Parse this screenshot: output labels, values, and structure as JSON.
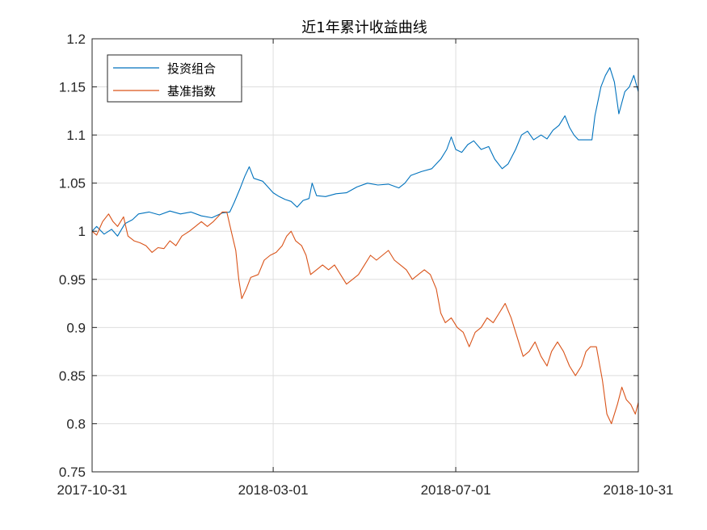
{
  "chart_data": {
    "type": "line",
    "title": "近1年累计收益曲线",
    "xlabel": "",
    "ylabel": "",
    "x_ticks": [
      "2017-10-31",
      "2018-03-01",
      "2018-07-01",
      "2018-10-31"
    ],
    "xlim": [
      "2017-10-31",
      "2018-10-31"
    ],
    "ylim": [
      0.75,
      1.2
    ],
    "y_ticks": [
      0.75,
      0.8,
      0.85,
      0.9,
      0.95,
      1,
      1.05,
      1.1,
      1.15,
      1.2
    ],
    "y_tick_labels": [
      "0.75",
      "0.8",
      "0.85",
      "0.9",
      "0.95",
      "1",
      "1.05",
      "1.1",
      "1.15",
      "1.2"
    ],
    "grid": true,
    "legend_position": "top-left",
    "series": [
      {
        "name": "投资组合",
        "color": "#0072BD",
        "points": [
          [
            "2017-10-31",
            1.0
          ],
          [
            "2017-11-03",
            1.005
          ],
          [
            "2017-11-08",
            0.997
          ],
          [
            "2017-11-13",
            1.002
          ],
          [
            "2017-11-17",
            0.995
          ],
          [
            "2017-11-22",
            1.008
          ],
          [
            "2017-11-27",
            1.012
          ],
          [
            "2017-12-01",
            1.018
          ],
          [
            "2017-12-08",
            1.02
          ],
          [
            "2017-12-15",
            1.017
          ],
          [
            "2017-12-22",
            1.021
          ],
          [
            "2017-12-29",
            1.018
          ],
          [
            "2018-01-05",
            1.02
          ],
          [
            "2018-01-12",
            1.016
          ],
          [
            "2018-01-19",
            1.014
          ],
          [
            "2018-01-26",
            1.019
          ],
          [
            "2018-01-31",
            1.02
          ],
          [
            "2018-02-03",
            1.03
          ],
          [
            "2018-02-07",
            1.045
          ],
          [
            "2018-02-10",
            1.057
          ],
          [
            "2018-02-13",
            1.067
          ],
          [
            "2018-02-16",
            1.055
          ],
          [
            "2018-02-22",
            1.052
          ],
          [
            "2018-03-01",
            1.04
          ],
          [
            "2018-03-05",
            1.036
          ],
          [
            "2018-03-09",
            1.033
          ],
          [
            "2018-03-13",
            1.031
          ],
          [
            "2018-03-17",
            1.025
          ],
          [
            "2018-03-21",
            1.032
          ],
          [
            "2018-03-25",
            1.034
          ],
          [
            "2018-03-27",
            1.05
          ],
          [
            "2018-03-30",
            1.037
          ],
          [
            "2018-04-05",
            1.036
          ],
          [
            "2018-04-12",
            1.039
          ],
          [
            "2018-04-19",
            1.04
          ],
          [
            "2018-04-26",
            1.046
          ],
          [
            "2018-05-03",
            1.05
          ],
          [
            "2018-05-10",
            1.048
          ],
          [
            "2018-05-17",
            1.049
          ],
          [
            "2018-05-24",
            1.045
          ],
          [
            "2018-05-28",
            1.05
          ],
          [
            "2018-06-01",
            1.058
          ],
          [
            "2018-06-08",
            1.062
          ],
          [
            "2018-06-15",
            1.065
          ],
          [
            "2018-06-21",
            1.075
          ],
          [
            "2018-06-25",
            1.085
          ],
          [
            "2018-06-28",
            1.098
          ],
          [
            "2018-07-01",
            1.085
          ],
          [
            "2018-07-05",
            1.082
          ],
          [
            "2018-07-09",
            1.09
          ],
          [
            "2018-07-13",
            1.094
          ],
          [
            "2018-07-18",
            1.085
          ],
          [
            "2018-07-23",
            1.088
          ],
          [
            "2018-07-27",
            1.075
          ],
          [
            "2018-08-01",
            1.065
          ],
          [
            "2018-08-05",
            1.07
          ],
          [
            "2018-08-10",
            1.085
          ],
          [
            "2018-08-14",
            1.1
          ],
          [
            "2018-08-18",
            1.104
          ],
          [
            "2018-08-22",
            1.095
          ],
          [
            "2018-08-27",
            1.1
          ],
          [
            "2018-08-31",
            1.096
          ],
          [
            "2018-09-04",
            1.105
          ],
          [
            "2018-09-08",
            1.11
          ],
          [
            "2018-09-12",
            1.12
          ],
          [
            "2018-09-15",
            1.108
          ],
          [
            "2018-09-18",
            1.1
          ],
          [
            "2018-09-21",
            1.095
          ],
          [
            "2018-09-26",
            1.095
          ],
          [
            "2018-09-30",
            1.095
          ],
          [
            "2018-10-02",
            1.12
          ],
          [
            "2018-10-06",
            1.15
          ],
          [
            "2018-10-09",
            1.162
          ],
          [
            "2018-10-12",
            1.17
          ],
          [
            "2018-10-15",
            1.155
          ],
          [
            "2018-10-18",
            1.122
          ],
          [
            "2018-10-22",
            1.145
          ],
          [
            "2018-10-25",
            1.15
          ],
          [
            "2018-10-28",
            1.162
          ],
          [
            "2018-10-31",
            1.145
          ]
        ]
      },
      {
        "name": "基准指数",
        "color": "#D95319",
        "points": [
          [
            "2017-10-31",
            1.0
          ],
          [
            "2017-11-03",
            0.996
          ],
          [
            "2017-11-07",
            1.01
          ],
          [
            "2017-11-11",
            1.018
          ],
          [
            "2017-11-14",
            1.01
          ],
          [
            "2017-11-17",
            1.005
          ],
          [
            "2017-11-21",
            1.015
          ],
          [
            "2017-11-24",
            0.995
          ],
          [
            "2017-11-28",
            0.99
          ],
          [
            "2017-12-02",
            0.988
          ],
          [
            "2017-12-06",
            0.985
          ],
          [
            "2017-12-10",
            0.978
          ],
          [
            "2017-12-14",
            0.983
          ],
          [
            "2017-12-18",
            0.982
          ],
          [
            "2017-12-22",
            0.99
          ],
          [
            "2017-12-26",
            0.985
          ],
          [
            "2017-12-30",
            0.995
          ],
          [
            "2018-01-04",
            1.0
          ],
          [
            "2018-01-08",
            1.005
          ],
          [
            "2018-01-12",
            1.01
          ],
          [
            "2018-01-16",
            1.005
          ],
          [
            "2018-01-20",
            1.01
          ],
          [
            "2018-01-23",
            1.015
          ],
          [
            "2018-01-26",
            1.02
          ],
          [
            "2018-01-29",
            1.02
          ],
          [
            "2018-02-01",
            1.0
          ],
          [
            "2018-02-04",
            0.98
          ],
          [
            "2018-02-06",
            0.95
          ],
          [
            "2018-02-08",
            0.93
          ],
          [
            "2018-02-11",
            0.94
          ],
          [
            "2018-02-14",
            0.952
          ],
          [
            "2018-02-19",
            0.955
          ],
          [
            "2018-02-23",
            0.97
          ],
          [
            "2018-02-27",
            0.975
          ],
          [
            "2018-03-03",
            0.978
          ],
          [
            "2018-03-07",
            0.985
          ],
          [
            "2018-03-10",
            0.995
          ],
          [
            "2018-03-13",
            1.0
          ],
          [
            "2018-03-16",
            0.99
          ],
          [
            "2018-03-20",
            0.985
          ],
          [
            "2018-03-23",
            0.975
          ],
          [
            "2018-03-26",
            0.955
          ],
          [
            "2018-03-30",
            0.96
          ],
          [
            "2018-04-03",
            0.965
          ],
          [
            "2018-04-07",
            0.96
          ],
          [
            "2018-04-11",
            0.965
          ],
          [
            "2018-04-15",
            0.955
          ],
          [
            "2018-04-19",
            0.945
          ],
          [
            "2018-04-23",
            0.95
          ],
          [
            "2018-04-27",
            0.955
          ],
          [
            "2018-05-01",
            0.965
          ],
          [
            "2018-05-05",
            0.975
          ],
          [
            "2018-05-09",
            0.97
          ],
          [
            "2018-05-13",
            0.975
          ],
          [
            "2018-05-17",
            0.98
          ],
          [
            "2018-05-21",
            0.97
          ],
          [
            "2018-05-25",
            0.965
          ],
          [
            "2018-05-29",
            0.96
          ],
          [
            "2018-06-02",
            0.95
          ],
          [
            "2018-06-06",
            0.955
          ],
          [
            "2018-06-10",
            0.96
          ],
          [
            "2018-06-14",
            0.955
          ],
          [
            "2018-06-18",
            0.94
          ],
          [
            "2018-06-21",
            0.915
          ],
          [
            "2018-06-24",
            0.905
          ],
          [
            "2018-06-28",
            0.91
          ],
          [
            "2018-07-02",
            0.9
          ],
          [
            "2018-07-06",
            0.895
          ],
          [
            "2018-07-10",
            0.88
          ],
          [
            "2018-07-14",
            0.895
          ],
          [
            "2018-07-18",
            0.9
          ],
          [
            "2018-07-22",
            0.91
          ],
          [
            "2018-07-26",
            0.905
          ],
          [
            "2018-07-30",
            0.915
          ],
          [
            "2018-08-03",
            0.925
          ],
          [
            "2018-08-07",
            0.91
          ],
          [
            "2018-08-11",
            0.89
          ],
          [
            "2018-08-15",
            0.87
          ],
          [
            "2018-08-19",
            0.875
          ],
          [
            "2018-08-23",
            0.885
          ],
          [
            "2018-08-27",
            0.87
          ],
          [
            "2018-08-31",
            0.86
          ],
          [
            "2018-09-03",
            0.875
          ],
          [
            "2018-09-07",
            0.885
          ],
          [
            "2018-09-11",
            0.875
          ],
          [
            "2018-09-15",
            0.86
          ],
          [
            "2018-09-19",
            0.85
          ],
          [
            "2018-09-23",
            0.86
          ],
          [
            "2018-09-26",
            0.875
          ],
          [
            "2018-09-29",
            0.88
          ],
          [
            "2018-10-03",
            0.88
          ],
          [
            "2018-10-07",
            0.845
          ],
          [
            "2018-10-10",
            0.81
          ],
          [
            "2018-10-13",
            0.8
          ],
          [
            "2018-10-17",
            0.82
          ],
          [
            "2018-10-20",
            0.838
          ],
          [
            "2018-10-23",
            0.825
          ],
          [
            "2018-10-26",
            0.82
          ],
          [
            "2018-10-29",
            0.81
          ],
          [
            "2018-10-31",
            0.822
          ]
        ]
      }
    ]
  }
}
